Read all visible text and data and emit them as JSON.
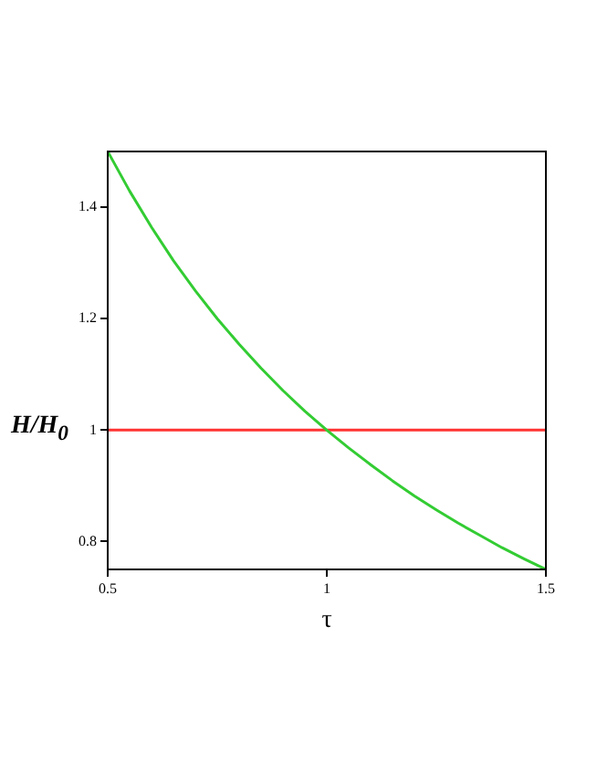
{
  "chart_data": {
    "type": "line",
    "xlabel": "τ",
    "ylabel": "H/H$_{0}$",
    "series": [
      {
        "color": "#33cc33",
        "x": [
          0.5,
          0.55,
          0.6,
          0.65,
          0.7,
          0.75,
          0.8,
          0.85,
          0.9,
          0.95,
          1,
          1.05,
          1.1,
          1.15,
          1.2,
          1.25,
          1.3,
          1.35,
          1.4,
          1.45,
          1.5
        ],
        "values": [
          1.5,
          1.429,
          1.364,
          1.304,
          1.25,
          1.2,
          1.154,
          1.111,
          1.071,
          1.034,
          1,
          0.968,
          0.938,
          0.909,
          0.882,
          0.857,
          0.833,
          0.811,
          0.789,
          0.769,
          0.75
        ]
      },
      {
        "color": "#ff3333",
        "x": [
          0.5,
          1.5
        ],
        "values": [
          1,
          1
        ]
      }
    ],
    "xlim": [
      0.5,
      1.5
    ],
    "xticks": [
      0.5,
      1,
      1.5
    ],
    "ylim": [
      0.75,
      1.5
    ],
    "yticks": [
      0.8,
      1,
      1.2,
      1.4
    ],
    "grid": false,
    "legend": false,
    "marker": "none",
    "line_style": "solid"
  }
}
